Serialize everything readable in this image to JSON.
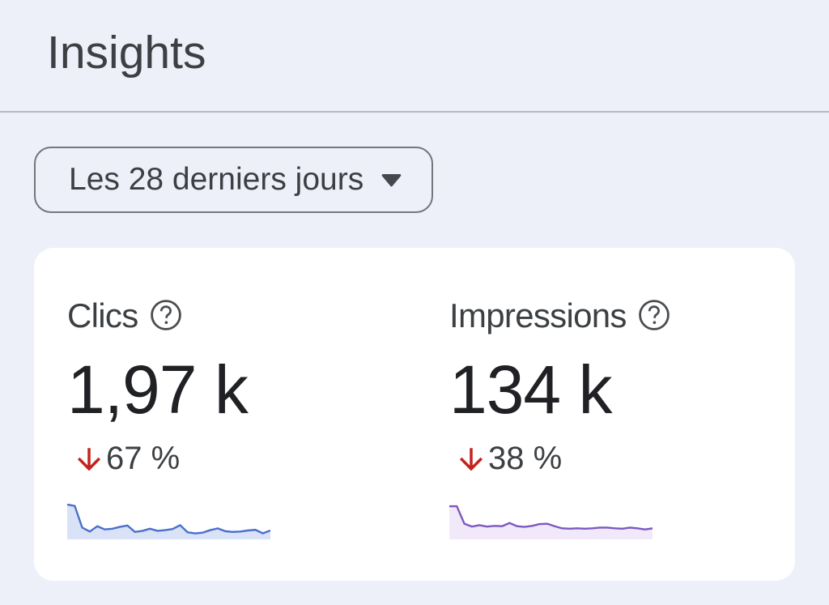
{
  "page": {
    "title": "Insights"
  },
  "date_filter": {
    "label": "Les 28 derniers jours"
  },
  "metrics": [
    {
      "id": "clicks",
      "label": "Clics",
      "value": "1,97 k",
      "change": {
        "direction": "down",
        "value": "67 %"
      },
      "spark": {
        "line_color": "#4a70cd",
        "fill_color": "#d9e2f7",
        "values": [
          98,
          94,
          33,
          22,
          37,
          28,
          30,
          35,
          39,
          21,
          24,
          30,
          24,
          26,
          29,
          40,
          20,
          17,
          19,
          26,
          31,
          23,
          21,
          22,
          25,
          27,
          17,
          25
        ]
      }
    },
    {
      "id": "impressions",
      "label": "Impressions",
      "value": "134 k",
      "change": {
        "direction": "down",
        "value": "38 %"
      },
      "spark": {
        "line_color": "#7c58c0",
        "fill_color": "#f1e9f9",
        "values": [
          93,
          93,
          44,
          36,
          40,
          36,
          38,
          37,
          46,
          37,
          35,
          38,
          43,
          44,
          37,
          31,
          30,
          31,
          30,
          31,
          33,
          33,
          31,
          30,
          33,
          31,
          28,
          31
        ]
      }
    }
  ],
  "colors": {
    "background": "#edf0f9",
    "card": "#ffffff",
    "divider": "#b7b9be",
    "text_primary": "#3c4043",
    "value_text": "#202124",
    "negative_change": "#c5221f",
    "button_border": "#73777c"
  },
  "chart_data": [
    {
      "type": "area",
      "title": "Clics sparkline (28 derniers jours)",
      "x": [
        1,
        2,
        3,
        4,
        5,
        6,
        7,
        8,
        9,
        10,
        11,
        12,
        13,
        14,
        15,
        16,
        17,
        18,
        19,
        20,
        21,
        22,
        23,
        24,
        25,
        26,
        27,
        28
      ],
      "values": [
        98,
        94,
        33,
        22,
        37,
        28,
        30,
        35,
        39,
        21,
        24,
        30,
        24,
        26,
        29,
        40,
        20,
        17,
        19,
        26,
        31,
        23,
        21,
        22,
        25,
        27,
        17,
        25
      ],
      "xlabel": "",
      "ylabel": "",
      "ylim": [
        0,
        100
      ],
      "grid": false,
      "legend": false,
      "line_color": "#4a70cd",
      "fill_color": "#d9e2f7"
    },
    {
      "type": "area",
      "title": "Impressions sparkline (28 derniers jours)",
      "x": [
        1,
        2,
        3,
        4,
        5,
        6,
        7,
        8,
        9,
        10,
        11,
        12,
        13,
        14,
        15,
        16,
        17,
        18,
        19,
        20,
        21,
        22,
        23,
        24,
        25,
        26,
        27,
        28
      ],
      "values": [
        93,
        93,
        44,
        36,
        40,
        36,
        38,
        37,
        46,
        37,
        35,
        38,
        43,
        44,
        37,
        31,
        30,
        31,
        30,
        31,
        33,
        33,
        31,
        30,
        33,
        31,
        28,
        31
      ],
      "xlabel": "",
      "ylabel": "",
      "ylim": [
        0,
        100
      ],
      "grid": false,
      "legend": false,
      "line_color": "#7c58c0",
      "fill_color": "#f1e9f9"
    }
  ]
}
